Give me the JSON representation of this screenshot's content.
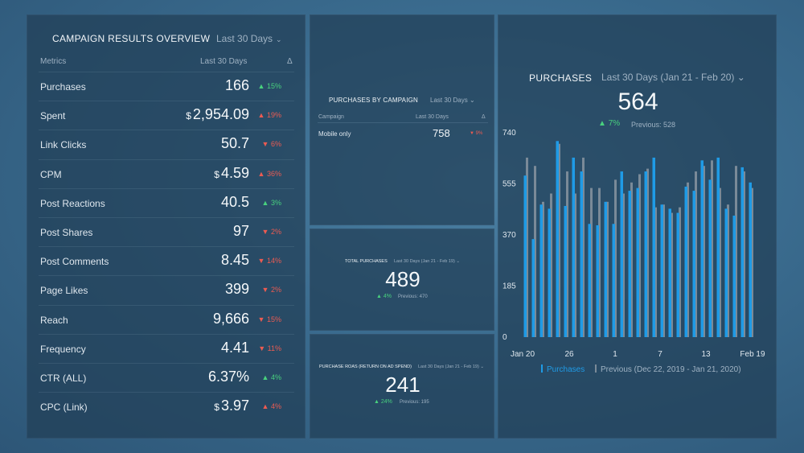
{
  "overview": {
    "title": "CAMPAIGN RESULTS OVERVIEW",
    "range": "Last 30 Days",
    "col_metrics": "Metrics",
    "col_period": "Last 30 Days",
    "col_delta": "Δ",
    "rows": [
      {
        "label": "Purchases",
        "currency": "",
        "value": "166",
        "delta": "15%",
        "dir": "up"
      },
      {
        "label": "Spent",
        "currency": "$",
        "value": "2,954.09",
        "delta": "19%",
        "dir": "up-bad"
      },
      {
        "label": "Link Clicks",
        "currency": "",
        "value": "50.7",
        "delta": "6%",
        "dir": "down"
      },
      {
        "label": "CPM",
        "currency": "$",
        "value": "4.59",
        "delta": "36%",
        "dir": "up-bad"
      },
      {
        "label": "Post Reactions",
        "currency": "",
        "value": "40.5",
        "delta": "3%",
        "dir": "up"
      },
      {
        "label": "Post Shares",
        "currency": "",
        "value": "97",
        "delta": "2%",
        "dir": "down"
      },
      {
        "label": "Post Comments",
        "currency": "",
        "value": "8.45",
        "delta": "14%",
        "dir": "down"
      },
      {
        "label": "Page Likes",
        "currency": "",
        "value": "399",
        "delta": "2%",
        "dir": "down"
      },
      {
        "label": "Reach",
        "currency": "",
        "value": "9,666",
        "delta": "15%",
        "dir": "down"
      },
      {
        "label": "Frequency",
        "currency": "",
        "value": "4.41",
        "delta": "11%",
        "dir": "down"
      },
      {
        "label": "CTR (ALL)",
        "currency": "",
        "value": "6.37%",
        "delta": "4%",
        "dir": "up"
      },
      {
        "label": "CPC (Link)",
        "currency": "$",
        "value": "3.97",
        "delta": "4%",
        "dir": "up-bad"
      }
    ]
  },
  "by_campaign": {
    "title": "PURCHASES BY CAMPAIGN",
    "range": "Last 30 Days",
    "col_campaign": "Campaign",
    "col_period": "Last 30 Days",
    "col_delta": "Δ",
    "row": {
      "label": "Mobile only",
      "value": "758",
      "delta": "9%"
    }
  },
  "total_purchases": {
    "title": "TOTAL PURCHASES",
    "range": "Last 30 Days (Jan 21 - Feb 19)",
    "value": "489",
    "delta": "4%",
    "previous": "Previous: 470"
  },
  "roas": {
    "title": "PURCHASE ROAS (RETURN ON AD SPEND)",
    "range": "Last 30 Days (Jan 21 - Feb 19)",
    "value": "241",
    "delta": "24%",
    "previous": "Previous: 195"
  },
  "purchases": {
    "title": "PURCHASES",
    "range": "Last 30 Days (Jan 21 - Feb 20)",
    "value": "564",
    "delta": "7%",
    "previous": "Previous: 528",
    "legend_current": "Purchases",
    "legend_previous": "Previous (Dec 22, 2019 - Jan 21, 2020)"
  },
  "colors": {
    "current": "#1f9be6",
    "previous": "#7a8a98",
    "up": "#48d17e",
    "down": "#ec5b52"
  },
  "chart_data": {
    "type": "bar",
    "ylim": [
      0,
      740
    ],
    "yticks": [
      "0",
      "185",
      "370",
      "555",
      "740"
    ],
    "xticks": [
      "Jan 20",
      "26",
      "1",
      "7",
      "13",
      "Feb 19"
    ],
    "series": [
      {
        "name": "Purchases",
        "values": [
          585,
          355,
          480,
          465,
          710,
          475,
          650,
          600,
          410,
          405,
          490,
          410,
          600,
          530,
          540,
          600,
          650,
          480,
          465,
          450,
          545,
          530,
          640,
          570,
          650,
          465,
          440,
          615,
          560
        ]
      },
      {
        "name": "Previous (Dec 22, 2019 - Jan 21, 2020)",
        "values": [
          650,
          620,
          490,
          520,
          700,
          600,
          520,
          650,
          540,
          540,
          490,
          570,
          520,
          560,
          590,
          610,
          470,
          480,
          450,
          470,
          560,
          600,
          620,
          640,
          540,
          480,
          620,
          600,
          540
        ]
      }
    ]
  }
}
